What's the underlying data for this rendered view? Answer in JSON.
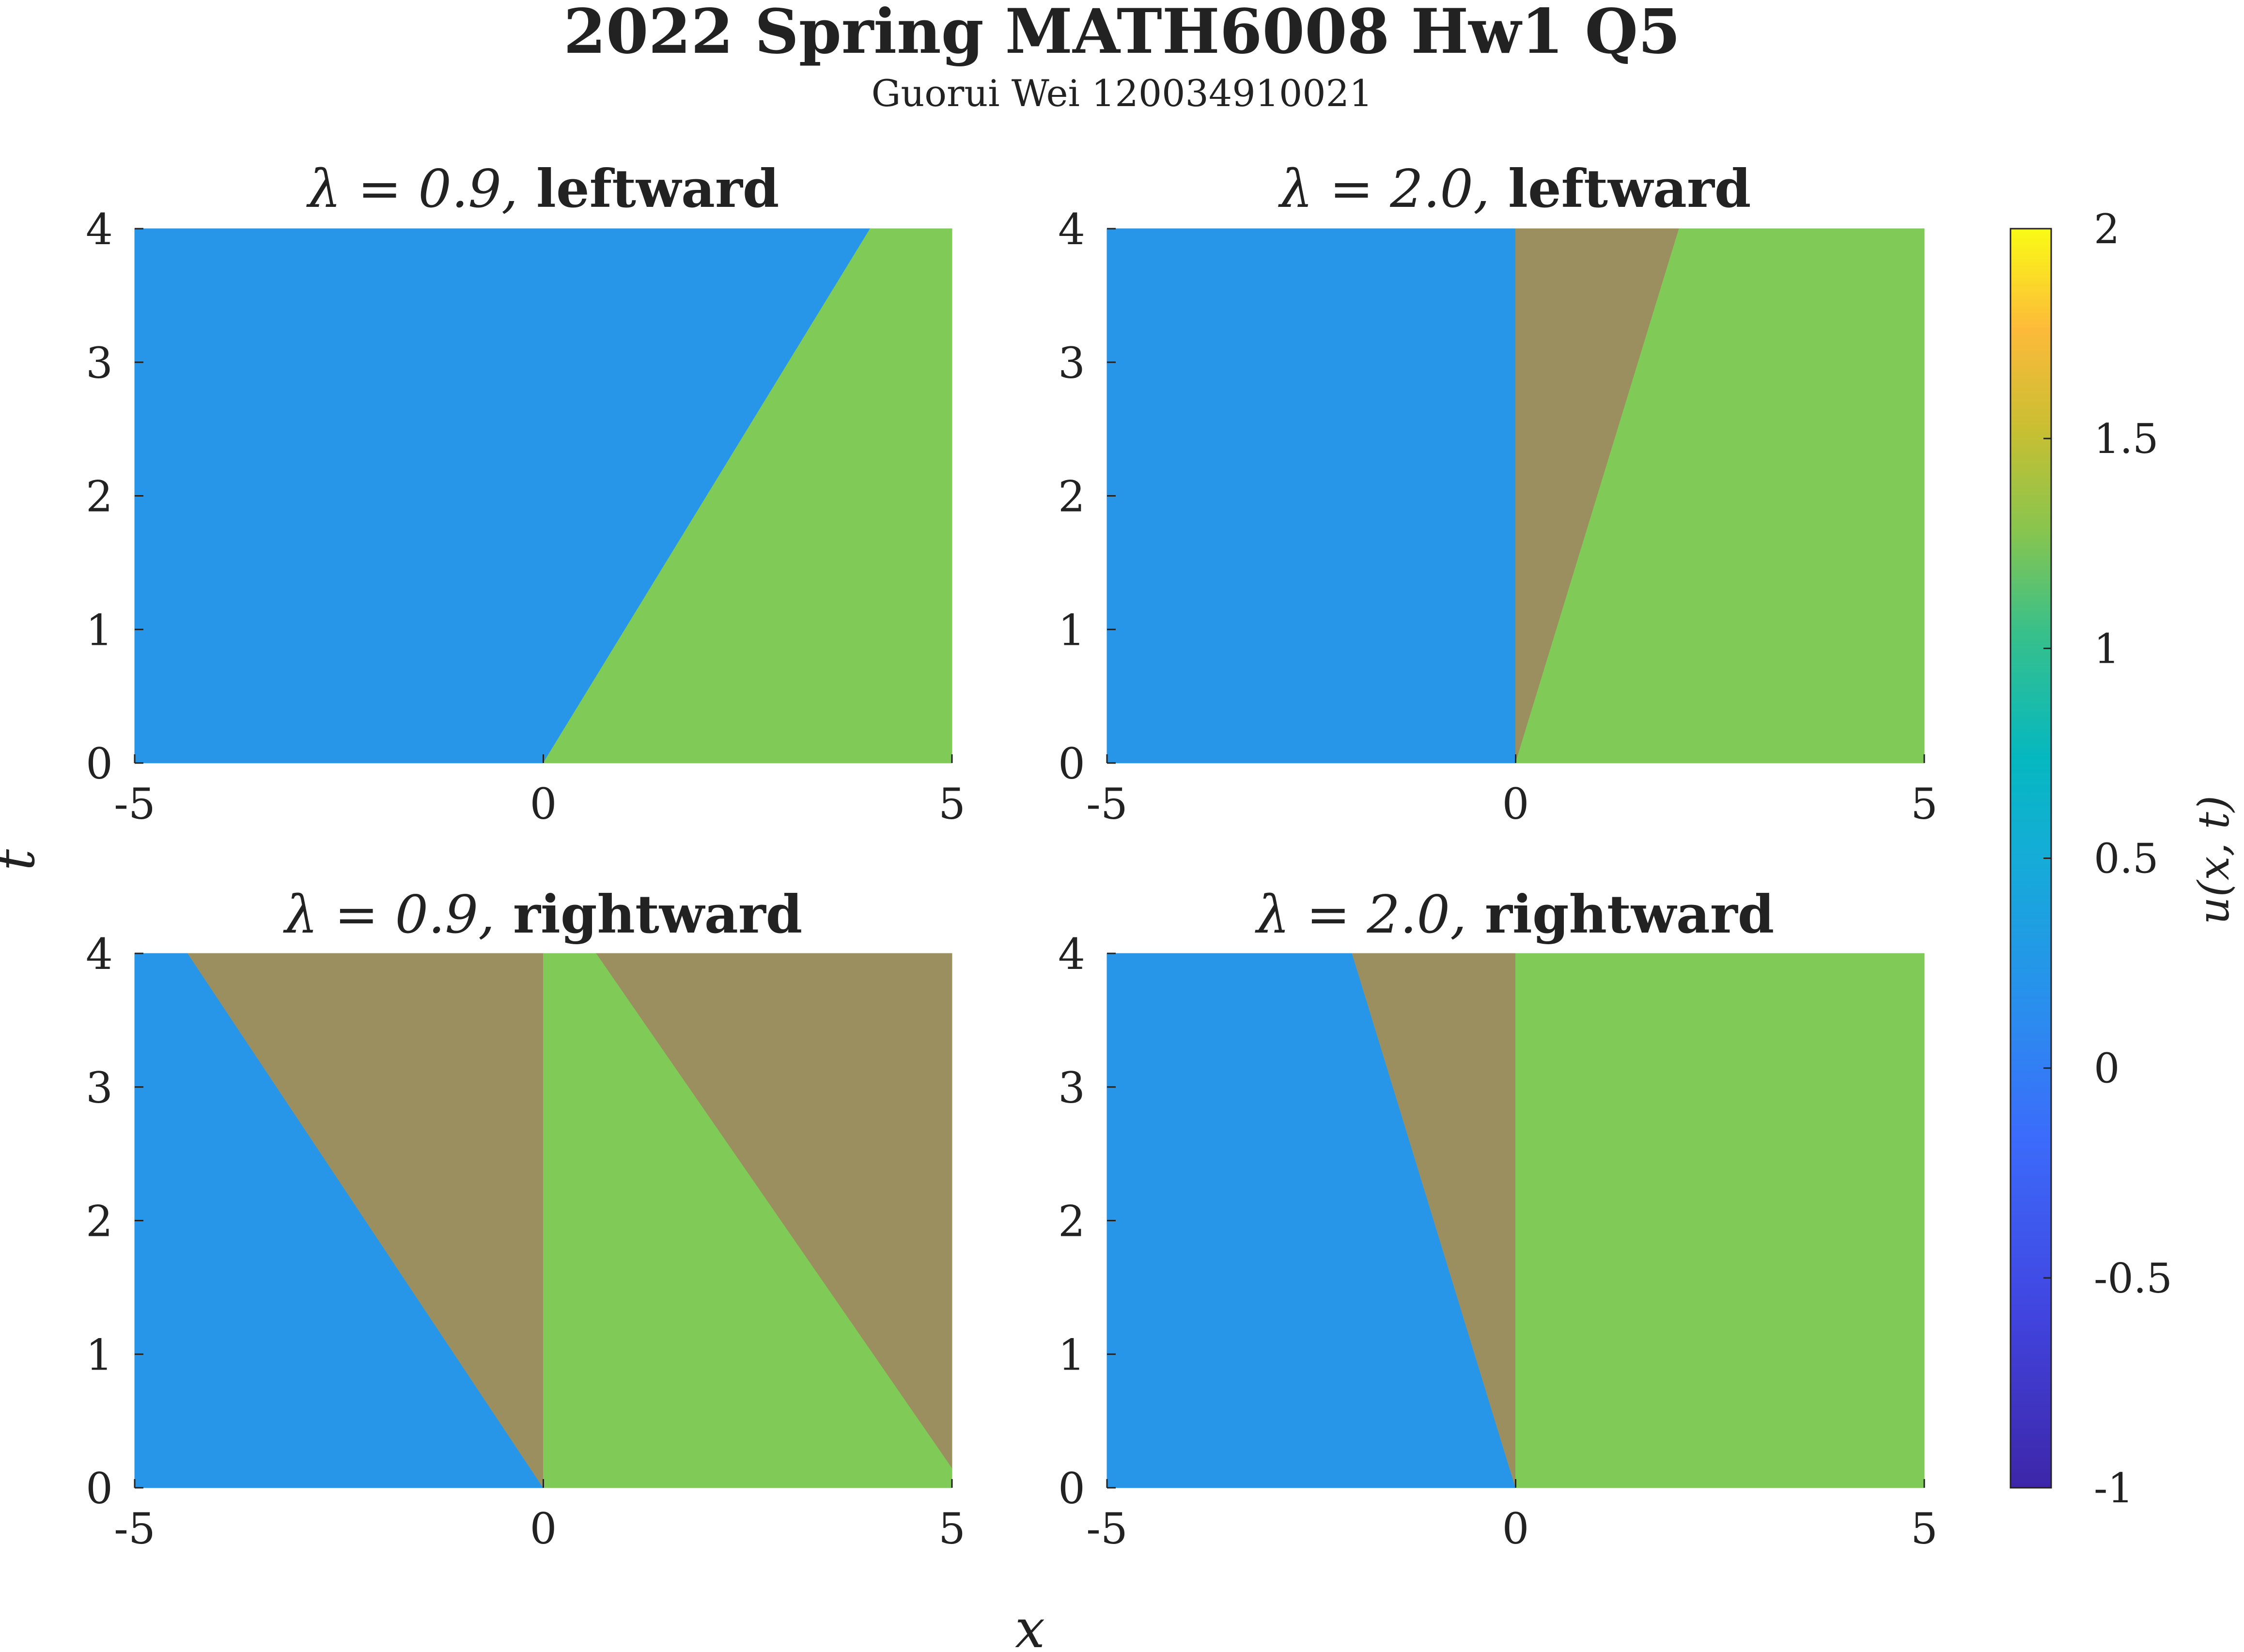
{
  "header": {
    "title": "2022 Spring MATH6008 Hw1 Q5",
    "subtitle": "Guorui Wei 120034910021"
  },
  "shared_axes": {
    "xlabel": "x",
    "ylabel": "t"
  },
  "colorbar": {
    "label": "u(x, t)",
    "range": [
      -1,
      2
    ],
    "ticks": [
      "-1",
      "-0.5",
      "0",
      "0.5",
      "1",
      "1.5",
      "2"
    ],
    "colormap": "parula"
  },
  "colors": {
    "u0": "#2896E8",
    "u1": "#80CA58",
    "mid": "#9B8F60",
    "axis": "#222222"
  },
  "chart_data": [
    {
      "type": "heatmap",
      "title_lambda": "λ = 0.9,",
      "title_rest": " leftward",
      "xlim": [
        -5,
        5
      ],
      "ylim": [
        0,
        4
      ],
      "x_ticks": [
        "-5",
        "0",
        "5"
      ],
      "y_ticks": [
        "0",
        "1",
        "2",
        "3",
        "4"
      ],
      "regions": [
        {
          "u": 0,
          "polygon": [
            [
              -5,
              0
            ],
            [
              0,
              0
            ],
            [
              4.0,
              4
            ],
            [
              -5,
              4
            ]
          ]
        },
        {
          "u": 1,
          "polygon": [
            [
              0,
              0
            ],
            [
              5,
              0
            ],
            [
              5,
              4
            ],
            [
              4.0,
              4
            ]
          ]
        }
      ]
    },
    {
      "type": "heatmap",
      "title_lambda": "λ = 2.0,",
      "title_rest": " leftward",
      "xlim": [
        -5,
        5
      ],
      "ylim": [
        0,
        4
      ],
      "x_ticks": [
        "-5",
        "0",
        "5"
      ],
      "y_ticks": [
        "0",
        "1",
        "2",
        "3",
        "4"
      ],
      "regions": [
        {
          "u": 0,
          "polygon": [
            [
              -5,
              0
            ],
            [
              0,
              0
            ],
            [
              0,
              4
            ],
            [
              -5,
              4
            ]
          ]
        },
        {
          "u": "mixed",
          "polygon": [
            [
              0,
              0
            ],
            [
              2.0,
              4
            ],
            [
              0,
              4
            ]
          ]
        },
        {
          "u": 1,
          "polygon": [
            [
              0,
              0
            ],
            [
              5,
              0
            ],
            [
              5,
              4
            ],
            [
              2.0,
              4
            ]
          ]
        }
      ]
    },
    {
      "type": "heatmap",
      "title_lambda": "λ = 0.9,",
      "title_rest": " rightward",
      "xlim": [
        -5,
        5
      ],
      "ylim": [
        0,
        4
      ],
      "x_ticks": [
        "-5",
        "0",
        "5"
      ],
      "y_ticks": [
        "0",
        "1",
        "2",
        "3",
        "4"
      ],
      "regions": [
        {
          "u": 0,
          "polygon": [
            [
              -5,
              0
            ],
            [
              0,
              0
            ],
            [
              -4.35,
              4
            ],
            [
              -5,
              4
            ]
          ]
        },
        {
          "u": "mixed",
          "polygon": [
            [
              0,
              0
            ],
            [
              0,
              4
            ],
            [
              -4.35,
              4
            ]
          ]
        },
        {
          "u": 1,
          "polygon": [
            [
              0,
              0
            ],
            [
              5,
              0
            ],
            [
              5,
              0.15
            ],
            [
              0.65,
              4
            ],
            [
              0,
              4
            ]
          ]
        },
        {
          "u": "mixed",
          "polygon": [
            [
              5,
              0.15
            ],
            [
              5,
              4
            ],
            [
              0.65,
              4
            ]
          ]
        }
      ]
    },
    {
      "type": "heatmap",
      "title_lambda": "λ = 2.0,",
      "title_rest": " rightward",
      "xlim": [
        -5,
        5
      ],
      "ylim": [
        0,
        4
      ],
      "x_ticks": [
        "-5",
        "0",
        "5"
      ],
      "y_ticks": [
        "0",
        "1",
        "2",
        "3",
        "4"
      ],
      "regions": [
        {
          "u": 0,
          "polygon": [
            [
              -5,
              0
            ],
            [
              0,
              0
            ],
            [
              -2.0,
              4
            ],
            [
              -5,
              4
            ]
          ]
        },
        {
          "u": "mixed",
          "polygon": [
            [
              0,
              0
            ],
            [
              0,
              4
            ],
            [
              -2.0,
              4
            ]
          ]
        },
        {
          "u": 1,
          "polygon": [
            [
              0,
              0
            ],
            [
              5,
              0
            ],
            [
              5,
              4
            ],
            [
              0,
              4
            ]
          ]
        }
      ]
    }
  ]
}
